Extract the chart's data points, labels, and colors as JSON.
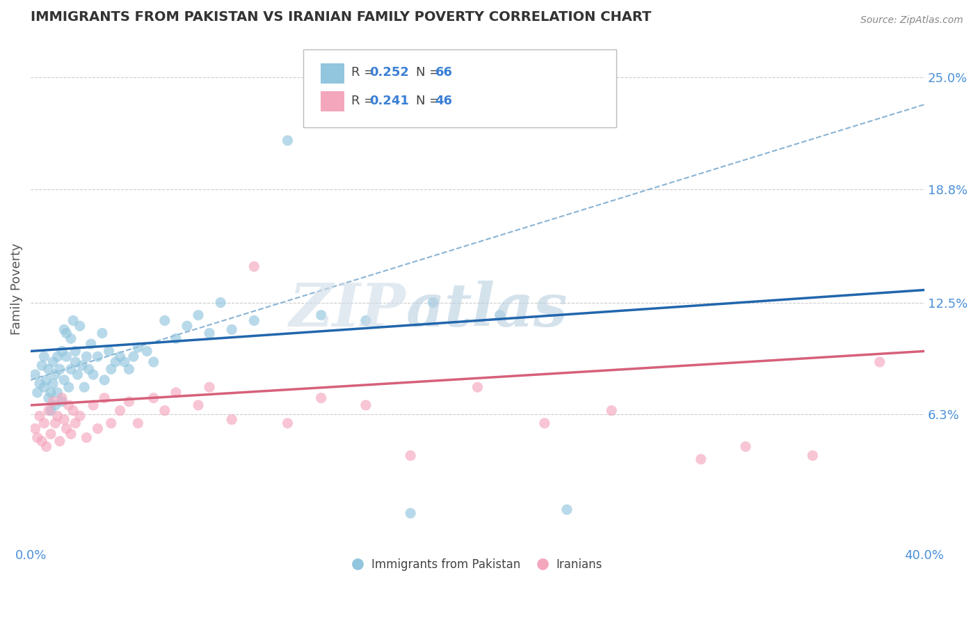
{
  "title": "IMMIGRANTS FROM PAKISTAN VS IRANIAN FAMILY POVERTY CORRELATION CHART",
  "source_text": "Source: ZipAtlas.com",
  "ylabel": "Family Poverty",
  "xlim": [
    0.0,
    0.4
  ],
  "ylim": [
    -0.01,
    0.275
  ],
  "yticks": [
    0.063,
    0.125,
    0.188,
    0.25
  ],
  "ytick_labels": [
    "6.3%",
    "12.5%",
    "18.8%",
    "25.0%"
  ],
  "xticks": [
    0.0,
    0.4
  ],
  "xtick_labels": [
    "0.0%",
    "40.0%"
  ],
  "legend_label1": "Immigrants from Pakistan",
  "legend_label2": "Iranians",
  "blue_color": "#92c5de",
  "pink_color": "#f4a6bd",
  "blue_line_color": "#2166ac",
  "pink_line_color": "#d6607a",
  "dashed_line_color": "#8ab4d4",
  "background_color": "#ffffff",
  "grid_color": "#cccccc",
  "title_color": "#333333",
  "axis_label_color": "#555555",
  "tick_label_color": "#4a90d9",
  "legend_text_color": "#444444",
  "legend_value_color": "#3a7fd4",
  "pakistan_trend_x": [
    0.0,
    0.4
  ],
  "pakistan_trend_y": [
    0.098,
    0.132
  ],
  "iranian_trend_x": [
    0.0,
    0.4
  ],
  "iranian_trend_y": [
    0.068,
    0.098
  ],
  "dashed_trend_x": [
    0.0,
    0.4
  ],
  "dashed_trend_y": [
    0.082,
    0.235
  ],
  "pakistan_x": [
    0.002,
    0.003,
    0.004,
    0.005,
    0.006,
    0.006,
    0.007,
    0.008,
    0.008,
    0.009,
    0.009,
    0.01,
    0.01,
    0.011,
    0.011,
    0.012,
    0.012,
    0.013,
    0.014,
    0.014,
    0.015,
    0.015,
    0.016,
    0.016,
    0.017,
    0.018,
    0.018,
    0.019,
    0.02,
    0.02,
    0.021,
    0.022,
    0.023,
    0.024,
    0.025,
    0.026,
    0.027,
    0.028,
    0.03,
    0.032,
    0.033,
    0.035,
    0.036,
    0.038,
    0.04,
    0.042,
    0.044,
    0.046,
    0.048,
    0.052,
    0.055,
    0.06,
    0.065,
    0.07,
    0.075,
    0.08,
    0.085,
    0.09,
    0.1,
    0.115,
    0.13,
    0.15,
    0.17,
    0.18,
    0.21,
    0.24
  ],
  "pakistan_y": [
    0.085,
    0.075,
    0.08,
    0.09,
    0.078,
    0.095,
    0.082,
    0.072,
    0.088,
    0.065,
    0.075,
    0.092,
    0.08,
    0.068,
    0.085,
    0.095,
    0.075,
    0.088,
    0.07,
    0.098,
    0.11,
    0.082,
    0.108,
    0.095,
    0.078,
    0.105,
    0.088,
    0.115,
    0.092,
    0.098,
    0.085,
    0.112,
    0.09,
    0.078,
    0.095,
    0.088,
    0.102,
    0.085,
    0.095,
    0.108,
    0.082,
    0.098,
    0.088,
    0.092,
    0.095,
    0.092,
    0.088,
    0.095,
    0.1,
    0.098,
    0.092,
    0.115,
    0.105,
    0.112,
    0.118,
    0.108,
    0.125,
    0.11,
    0.115,
    0.215,
    0.118,
    0.115,
    0.008,
    0.125,
    0.118,
    0.01
  ],
  "iranian_x": [
    0.002,
    0.003,
    0.004,
    0.005,
    0.006,
    0.007,
    0.008,
    0.009,
    0.01,
    0.011,
    0.012,
    0.013,
    0.014,
    0.015,
    0.016,
    0.017,
    0.018,
    0.019,
    0.02,
    0.022,
    0.025,
    0.028,
    0.03,
    0.033,
    0.036,
    0.04,
    0.044,
    0.048,
    0.055,
    0.06,
    0.065,
    0.075,
    0.08,
    0.09,
    0.1,
    0.115,
    0.13,
    0.15,
    0.17,
    0.2,
    0.23,
    0.26,
    0.3,
    0.32,
    0.35,
    0.38
  ],
  "iranian_y": [
    0.055,
    0.05,
    0.062,
    0.048,
    0.058,
    0.045,
    0.065,
    0.052,
    0.07,
    0.058,
    0.062,
    0.048,
    0.072,
    0.06,
    0.055,
    0.068,
    0.052,
    0.065,
    0.058,
    0.062,
    0.05,
    0.068,
    0.055,
    0.072,
    0.058,
    0.065,
    0.07,
    0.058,
    0.072,
    0.065,
    0.075,
    0.068,
    0.078,
    0.06,
    0.145,
    0.058,
    0.072,
    0.068,
    0.04,
    0.078,
    0.058,
    0.065,
    0.038,
    0.045,
    0.04,
    0.092
  ]
}
